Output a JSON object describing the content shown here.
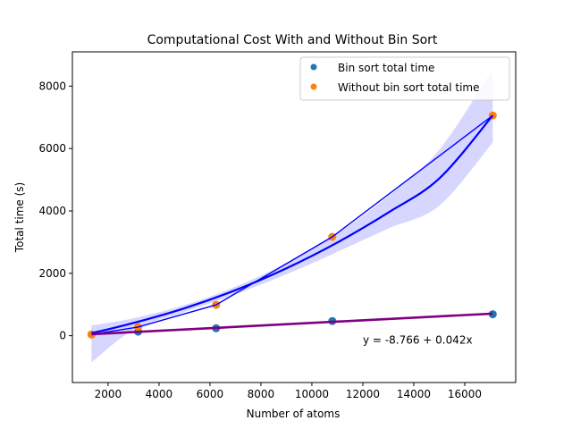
{
  "chart_data": {
    "type": "scatter",
    "title": "Computational Cost With and Without Bin Sort",
    "xlabel": "Number of atoms",
    "ylabel": "Total time (s)",
    "xlim": [
      600,
      18000
    ],
    "ylim": [
      -1500,
      9100
    ],
    "x_ticks": [
      2000,
      4000,
      6000,
      8000,
      10000,
      12000,
      14000,
      16000
    ],
    "x_tick_labels": [
      "2000",
      "4000",
      "6000",
      "8000",
      "10000",
      "12000",
      "14000",
      "16000"
    ],
    "y_ticks": [
      0,
      2000,
      4000,
      6000,
      8000
    ],
    "y_tick_labels": [
      "0",
      "2000",
      "4000",
      "6000",
      "8000"
    ],
    "grid": false,
    "legend_position": "top-right",
    "series": [
      {
        "name": "Bin sort total time",
        "color": "#1f77b4",
        "x": [
          1350,
          3180,
          6240,
          10800,
          17100
        ],
        "y": [
          40,
          130,
          240,
          470,
          690
        ]
      },
      {
        "name": "Without bin sort total time",
        "color": "#ff7f0e",
        "x": [
          1350,
          3180,
          6240,
          10800,
          17100
        ],
        "y": [
          40,
          280,
          990,
          3170,
          7060
        ]
      }
    ],
    "fits": [
      {
        "kind": "quadratic",
        "color": "#0000ff",
        "band_color": "#ccccff",
        "x": [
          1350,
          3000,
          5000,
          7000,
          9000,
          11000,
          13000,
          15000,
          17100
        ],
        "y": [
          80,
          410,
          880,
          1460,
          2160,
          2990,
          3950,
          5040,
          7060
        ],
        "band_upper": [
          330,
          560,
          980,
          1570,
          2330,
          3280,
          4470,
          5960,
          8550
        ],
        "band_lower": [
          -850,
          190,
          760,
          1330,
          1970,
          2690,
          3440,
          4170,
          6200
        ]
      },
      {
        "kind": "linear",
        "color": "#800080",
        "x": [
          1350,
          17100
        ],
        "y": [
          48,
          710
        ]
      }
    ],
    "connector": {
      "color": "#0000ff",
      "x": [
        1350,
        3180,
        6240,
        10800,
        17100
      ],
      "y": [
        40,
        280,
        990,
        3170,
        7060
      ]
    },
    "annotation": {
      "text": "y = -8.766 + 0.042x",
      "x": 12000,
      "y": 60
    }
  }
}
